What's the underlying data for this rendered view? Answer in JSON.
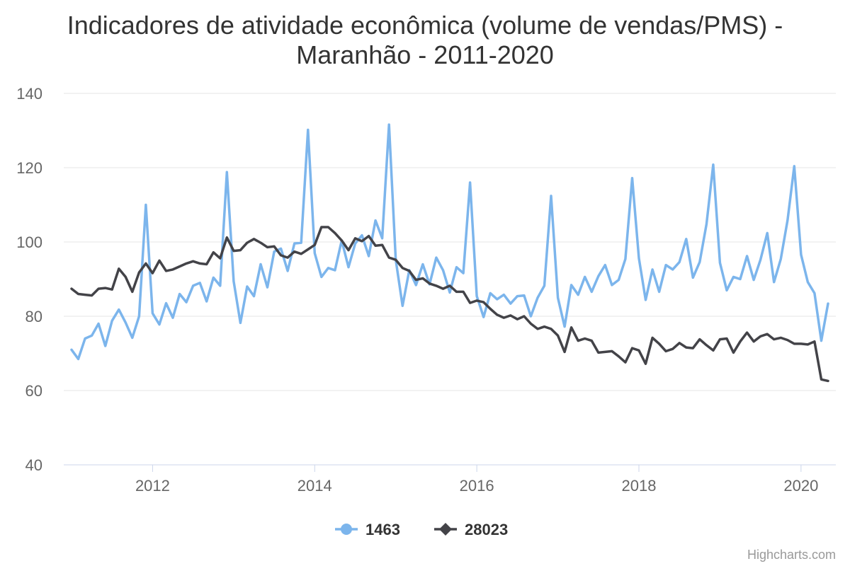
{
  "chart_data": {
    "type": "line",
    "title_line1": "Indicadores de atividade econômica (volume de vendas/PMS) -",
    "title_line2": "Maranhão - 2011-2020",
    "xlabel": "",
    "ylabel": "",
    "ylim": [
      40,
      140
    ],
    "yticks": [
      "40",
      "60",
      "80",
      "100",
      "120",
      "140"
    ],
    "xticks": [
      "2012",
      "2014",
      "2016",
      "2018",
      "2020"
    ],
    "x_start": "2011-01",
    "x_end": "2020-05",
    "grid": true,
    "legend_position": "bottom-center",
    "series": [
      {
        "name": "1463",
        "color": "#7cb5ec",
        "marker": "circle",
        "values": [
          71,
          68.5,
          74,
          74.8,
          78,
          72,
          78.8,
          81.8,
          78.3,
          74.2,
          80,
          110,
          80.8,
          77.8,
          83.5,
          79.6,
          86,
          83.8,
          88.2,
          89,
          84,
          90.4,
          88.2,
          118.8,
          89.4,
          78.2,
          88,
          85.4,
          94,
          87.8,
          97.4,
          98.2,
          92.2,
          99.6,
          99.8,
          130.2,
          97,
          90.6,
          93,
          92.4,
          100.4,
          93.2,
          99.6,
          101.8,
          96.2,
          105.8,
          101,
          131.6,
          95.2,
          82.8,
          92.4,
          88.4,
          94,
          88.6,
          95.8,
          92.4,
          86.4,
          93.2,
          91.6,
          116,
          85.4,
          79.8,
          86.2,
          84.6,
          85.8,
          83.4,
          85.4,
          85.6,
          80,
          85,
          88.2,
          112.4,
          85,
          77.2,
          88.4,
          85.8,
          90.6,
          86.6,
          90.8,
          93.8,
          88.4,
          89.8,
          95.4,
          117.2,
          95.6,
          84.4,
          92.6,
          86.6,
          93.8,
          92.6,
          94.6,
          100.8,
          90.4,
          94.6,
          104.8,
          120.8,
          94.4,
          87,
          90.6,
          90,
          96.2,
          89.8,
          95.2,
          102.4,
          89.2,
          95.4,
          105.8,
          120.4,
          96.6,
          89.2,
          86.2,
          73.4,
          83.4
        ]
      },
      {
        "name": "28023",
        "color": "#434348",
        "marker": "diamond",
        "values": [
          87.4,
          86,
          85.8,
          85.6,
          87.4,
          87.6,
          87.2,
          92.8,
          90.6,
          86.6,
          91.8,
          94.2,
          91.6,
          95,
          92.2,
          92.6,
          93.4,
          94.2,
          94.8,
          94.2,
          94,
          97.2,
          95.6,
          101.2,
          97.6,
          97.8,
          99.8,
          100.8,
          99.8,
          98.6,
          98.8,
          96.4,
          95.8,
          97.4,
          96.8,
          98,
          99.2,
          104,
          104,
          102.4,
          100.4,
          97.8,
          101,
          100.2,
          101.6,
          99,
          99.2,
          95.8,
          95.2,
          93,
          92.2,
          89.8,
          90.2,
          88.8,
          88.2,
          87.4,
          88.2,
          86.6,
          86.6,
          83.6,
          84.2,
          83.8,
          82,
          80.4,
          79.6,
          80.2,
          79.2,
          80,
          78,
          76.6,
          77.2,
          76.6,
          74.8,
          70.4,
          77,
          73.4,
          74,
          73.4,
          70.2,
          70.4,
          70.6,
          69.2,
          67.6,
          71.4,
          70.8,
          67.2,
          74.2,
          72.6,
          70.6,
          71.2,
          72.8,
          71.6,
          71.4,
          73.8,
          72.2,
          70.8,
          73.8,
          74,
          70.2,
          73.2,
          75.6,
          73.2,
          74.6,
          75.2,
          73.8,
          74.2,
          73.6,
          72.6,
          72.6,
          72.4,
          73.2,
          63,
          62.6
        ]
      }
    ]
  },
  "credits": "Highcharts.com"
}
